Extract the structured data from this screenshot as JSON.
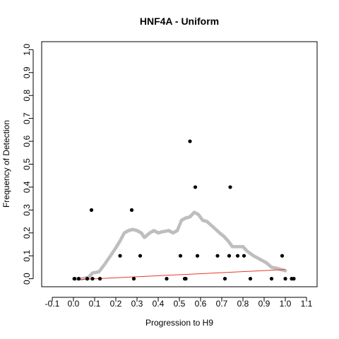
{
  "chart_data": {
    "type": "scatter",
    "title": "HNF4A - Uniform",
    "xlabel": "Progression to H9",
    "ylabel": "Frequency of Detection",
    "xlim": [
      -0.15,
      1.15
    ],
    "ylim": [
      -0.035,
      1.035
    ],
    "xticks": [
      "-0.1",
      "0.0",
      "0.1",
      "0.2",
      "0.3",
      "0.4",
      "0.5",
      "0.6",
      "0.7",
      "0.8",
      "0.9",
      "1.0",
      "1.1"
    ],
    "yticks": [
      "0.0",
      "0.1",
      "0.2",
      "0.3",
      "0.4",
      "0.5",
      "0.6",
      "0.7",
      "0.8",
      "0.9",
      "1.0"
    ],
    "grid": false,
    "series": [
      {
        "kind": "points",
        "color": "#000000",
        "points": [
          [
            0.005,
            0.0
          ],
          [
            0.025,
            0.0
          ],
          [
            0.065,
            0.0
          ],
          [
            0.085,
            0.3
          ],
          [
            0.09,
            0.0
          ],
          [
            0.125,
            0.0
          ],
          [
            0.22,
            0.1
          ],
          [
            0.275,
            0.3
          ],
          [
            0.285,
            0.0
          ],
          [
            0.315,
            0.1
          ],
          [
            0.44,
            0.0
          ],
          [
            0.505,
            0.1
          ],
          [
            0.525,
            0.0
          ],
          [
            0.53,
            0.0
          ],
          [
            0.55,
            0.6
          ],
          [
            0.575,
            0.4
          ],
          [
            0.585,
            0.1
          ],
          [
            0.68,
            0.1
          ],
          [
            0.715,
            0.0
          ],
          [
            0.735,
            0.1
          ],
          [
            0.74,
            0.4
          ],
          [
            0.775,
            0.1
          ],
          [
            0.805,
            0.1
          ],
          [
            0.835,
            0.0
          ],
          [
            0.935,
            0.0
          ],
          [
            0.985,
            0.1
          ],
          [
            1.0,
            0.0
          ],
          [
            1.03,
            0.0
          ],
          [
            1.04,
            0.0
          ]
        ]
      },
      {
        "kind": "smooth",
        "color": "#bebebe",
        "points": [
          [
            0.0,
            0.0
          ],
          [
            0.04,
            0.0
          ],
          [
            0.07,
            0.005
          ],
          [
            0.09,
            0.025
          ],
          [
            0.12,
            0.03
          ],
          [
            0.145,
            0.06
          ],
          [
            0.175,
            0.1
          ],
          [
            0.2,
            0.135
          ],
          [
            0.22,
            0.165
          ],
          [
            0.24,
            0.2
          ],
          [
            0.26,
            0.21
          ],
          [
            0.28,
            0.215
          ],
          [
            0.3,
            0.21
          ],
          [
            0.32,
            0.2
          ],
          [
            0.335,
            0.18
          ],
          [
            0.36,
            0.2
          ],
          [
            0.38,
            0.21
          ],
          [
            0.4,
            0.2
          ],
          [
            0.42,
            0.205
          ],
          [
            0.45,
            0.21
          ],
          [
            0.47,
            0.2
          ],
          [
            0.49,
            0.21
          ],
          [
            0.51,
            0.255
          ],
          [
            0.53,
            0.265
          ],
          [
            0.55,
            0.27
          ],
          [
            0.57,
            0.29
          ],
          [
            0.59,
            0.28
          ],
          [
            0.61,
            0.255
          ],
          [
            0.63,
            0.25
          ],
          [
            0.66,
            0.225
          ],
          [
            0.69,
            0.2
          ],
          [
            0.71,
            0.185
          ],
          [
            0.73,
            0.165
          ],
          [
            0.75,
            0.14
          ],
          [
            0.78,
            0.14
          ],
          [
            0.8,
            0.14
          ],
          [
            0.82,
            0.12
          ],
          [
            0.85,
            0.1
          ],
          [
            0.88,
            0.085
          ],
          [
            0.91,
            0.07
          ],
          [
            0.935,
            0.05
          ],
          [
            0.96,
            0.045
          ],
          [
            0.98,
            0.04
          ],
          [
            1.0,
            0.035
          ]
        ]
      },
      {
        "kind": "line",
        "color": "#e8372c",
        "points": [
          [
            0.0,
            -0.005
          ],
          [
            1.0,
            0.04
          ]
        ]
      }
    ]
  }
}
